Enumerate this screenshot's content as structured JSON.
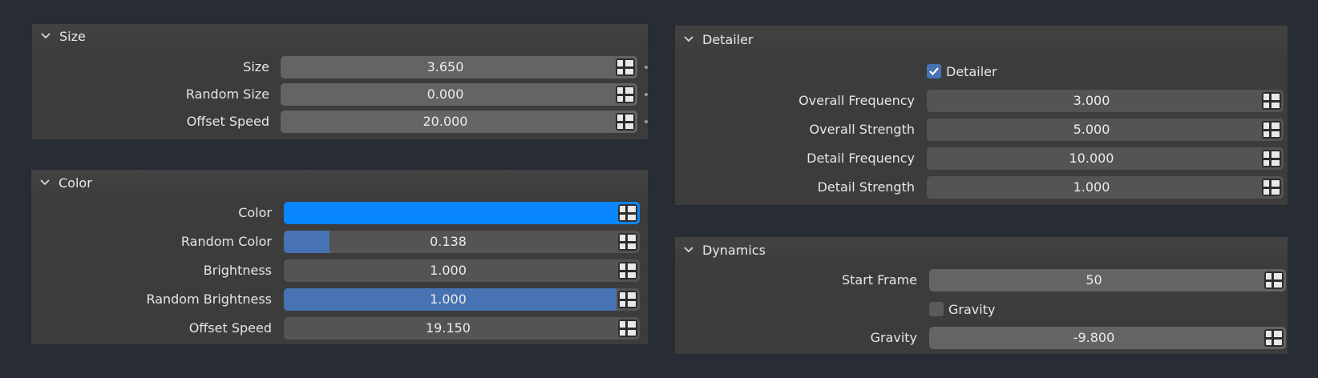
{
  "panels": {
    "size": {
      "title": "Size",
      "rows": [
        {
          "label": "Size",
          "value": "3.650"
        },
        {
          "label": "Random Size",
          "value": "0.000"
        },
        {
          "label": "Offset Speed",
          "value": "20.000"
        }
      ]
    },
    "color": {
      "title": "Color",
      "swatch_color": "#0a86ff",
      "rows": [
        {
          "label": "Color"
        },
        {
          "label": "Random Color",
          "value": "0.138",
          "fraction": 0.138
        },
        {
          "label": "Brightness",
          "value": "1.000"
        },
        {
          "label": "Random Brightness",
          "value": "1.000",
          "fraction": 1.0
        },
        {
          "label": "Offset Speed",
          "value": "19.150"
        }
      ]
    },
    "detailer": {
      "title": "Detailer",
      "checkbox": {
        "label": "Detailer",
        "checked": true
      },
      "rows": [
        {
          "label": "Overall Frequency",
          "value": "3.000"
        },
        {
          "label": "Overall Strength",
          "value": "5.000"
        },
        {
          "label": "Detail Frequency",
          "value": "10.000"
        },
        {
          "label": "Detail Strength",
          "value": "1.000"
        }
      ]
    },
    "dynamics": {
      "title": "Dynamics",
      "start_frame": {
        "label": "Start Frame",
        "value": "50"
      },
      "checkbox": {
        "label": "Gravity",
        "checked": false
      },
      "gravity": {
        "label": "Gravity",
        "value": "-9.800"
      }
    }
  },
  "colors": {
    "accent": "#4772b3",
    "panel": "#3c3c3c",
    "background": "#282c34"
  }
}
